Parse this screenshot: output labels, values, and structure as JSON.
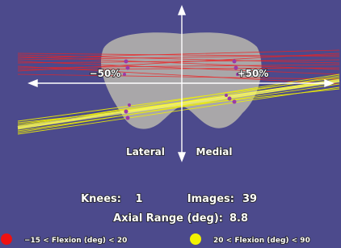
{
  "plot": {
    "left_axis_label": "−50%",
    "right_axis_label": "+50%",
    "lateral_label": "Lateral",
    "medial_label": "Medial"
  },
  "stats": {
    "knees_label": "Knees:",
    "knees": 1,
    "images_label": "Images:",
    "images": 39,
    "range_label": "Axial Range (deg):",
    "range": 8.8
  },
  "legend": [
    {
      "label": "−15 < Flexion (deg) < 20",
      "color": "#ee1111"
    },
    {
      "label": "20 < Flexion (deg) < 90",
      "color": "#f2f200"
    }
  ]
}
